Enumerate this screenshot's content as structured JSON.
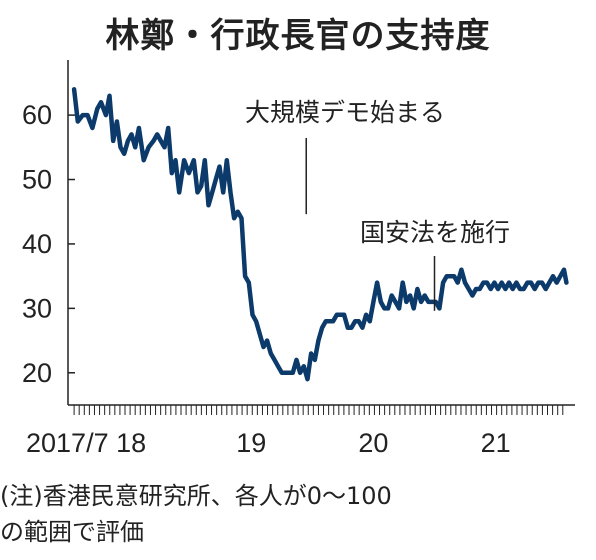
{
  "title": "林鄭・行政長官の支持度",
  "note": "(注)香港民意研究所、各人が0～100\nの範囲で評価",
  "colors": {
    "line": "#0c3a6b",
    "text": "#222222",
    "axis": "#222222"
  },
  "chart_data": {
    "type": "line",
    "title": "林鄭・行政長官の支持度",
    "xlabel": "",
    "ylabel": "",
    "xlim": [
      2017.5,
      2021.65
    ],
    "ylim": [
      15,
      67
    ],
    "yticks": [
      20,
      30,
      40,
      50,
      60
    ],
    "xticks": [
      {
        "value": 2017.55,
        "label": "2017/7 18"
      },
      {
        "value": 2019.0,
        "label": "19"
      },
      {
        "value": 2020.0,
        "label": "20"
      },
      {
        "value": 2021.0,
        "label": "21"
      }
    ],
    "grid": false,
    "annotations": [
      {
        "x": 2019.45,
        "y": 44,
        "text": "大規模デモ始まる"
      },
      {
        "x": 2020.5,
        "y": 29,
        "text": "国安法を施行"
      }
    ],
    "series": [
      {
        "name": "",
        "x": [
          2017.55,
          2017.58,
          2017.62,
          2017.66,
          2017.7,
          2017.74,
          2017.77,
          2017.81,
          2017.84,
          2017.87,
          2017.9,
          2017.93,
          2017.96,
          2017.99,
          2018.02,
          2018.05,
          2018.08,
          2018.12,
          2018.16,
          2018.2,
          2018.23,
          2018.26,
          2018.29,
          2018.32,
          2018.35,
          2018.38,
          2018.41,
          2018.45,
          2018.49,
          2018.53,
          2018.56,
          2018.59,
          2018.62,
          2018.65,
          2018.68,
          2018.71,
          2018.74,
          2018.77,
          2018.8,
          2018.83,
          2018.86,
          2018.89,
          2018.92,
          2018.95,
          2018.98,
          2019.01,
          2019.04,
          2019.07,
          2019.1,
          2019.13,
          2019.16,
          2019.19,
          2019.22,
          2019.25,
          2019.28,
          2019.31,
          2019.34,
          2019.37,
          2019.4,
          2019.43,
          2019.46,
          2019.49,
          2019.52,
          2019.55,
          2019.58,
          2019.61,
          2019.64,
          2019.67,
          2019.7,
          2019.73,
          2019.76,
          2019.79,
          2019.82,
          2019.85,
          2019.88,
          2019.91,
          2019.94,
          2019.97,
          2020.0,
          2020.03,
          2020.06,
          2020.09,
          2020.12,
          2020.15,
          2020.18,
          2020.21,
          2020.24,
          2020.27,
          2020.3,
          2020.33,
          2020.36,
          2020.39,
          2020.42,
          2020.45,
          2020.48,
          2020.51,
          2020.54,
          2020.57,
          2020.6,
          2020.63,
          2020.66,
          2020.69,
          2020.72,
          2020.75,
          2020.78,
          2020.81,
          2020.84,
          2020.87,
          2020.9,
          2020.93,
          2020.96,
          2020.99,
          2021.02,
          2021.05,
          2021.08,
          2021.11,
          2021.14,
          2021.17,
          2021.2,
          2021.23,
          2021.26,
          2021.29,
          2021.32,
          2021.35,
          2021.38,
          2021.41,
          2021.44,
          2021.47,
          2021.5,
          2021.53,
          2021.56,
          2021.58
        ],
        "values": [
          64,
          59,
          60,
          60,
          58,
          61,
          62,
          60,
          63,
          56,
          59,
          55,
          54,
          56,
          57,
          55,
          58,
          53,
          55,
          56,
          57,
          56,
          55,
          58,
          51,
          53,
          48,
          53,
          51,
          53,
          48,
          49,
          53,
          46,
          48,
          50,
          52,
          48,
          53,
          48,
          44,
          45,
          44,
          35,
          34,
          29,
          28,
          26,
          24,
          25,
          23,
          22,
          21,
          20,
          20,
          20,
          20,
          22,
          20,
          21,
          19,
          23,
          22,
          25,
          27,
          28,
          28,
          28,
          29,
          29,
          29,
          27,
          27,
          28,
          28,
          27,
          29,
          28,
          31,
          34,
          31,
          30,
          30,
          32,
          31,
          30,
          34,
          31,
          32,
          30,
          33,
          31,
          32,
          31,
          31,
          31,
          30,
          34,
          35,
          35,
          35,
          34,
          36,
          34,
          33,
          32,
          33,
          33,
          34,
          34,
          33,
          34,
          33,
          34,
          33,
          34,
          33,
          34,
          33,
          33,
          34,
          34,
          33,
          34,
          34,
          33,
          34,
          35,
          34,
          35,
          36,
          34
        ]
      }
    ]
  }
}
